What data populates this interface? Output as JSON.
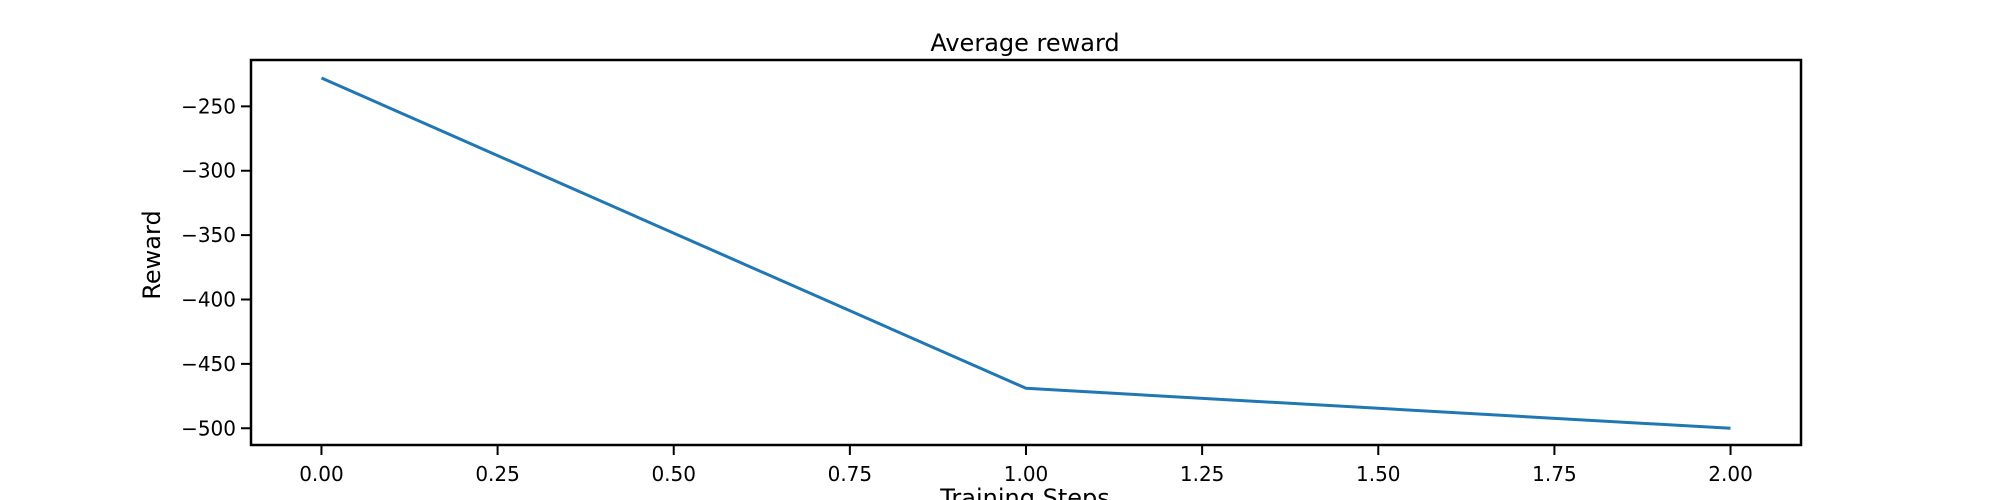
{
  "chart_data": {
    "type": "line",
    "title": "Average reward",
    "xlabel": "Training Steps",
    "ylabel": "Reward",
    "xlim": [
      -0.1,
      2.1
    ],
    "ylim": [
      -513,
      -214
    ],
    "xticks": [
      0.0,
      0.25,
      0.5,
      0.75,
      1.0,
      1.25,
      1.5,
      1.75,
      2.0
    ],
    "xtick_labels": [
      "0.00",
      "0.25",
      "0.50",
      "0.75",
      "1.00",
      "1.25",
      "1.50",
      "1.75",
      "2.00"
    ],
    "yticks": [
      -250,
      -300,
      -350,
      -400,
      -450,
      -500
    ],
    "ytick_labels": [
      "−250",
      "−300",
      "−350",
      "−400",
      "−450",
      "−500"
    ],
    "grid": false,
    "series": [
      {
        "x": [
          0,
          1,
          2
        ],
        "y": [
          -228,
          -469,
          -500
        ],
        "color": "#1f77b4"
      }
    ]
  }
}
